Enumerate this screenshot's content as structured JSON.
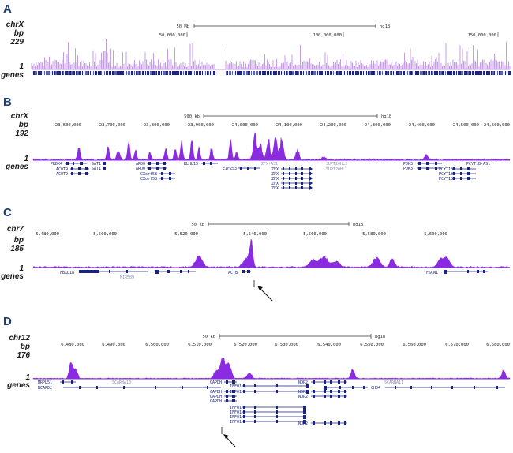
{
  "colors": {
    "signal": "#8a2be2",
    "signal_panel_a": "#c79be8",
    "gene": "#1a237e",
    "label": "#1f3f70",
    "arrow": "#111111"
  },
  "panels": [
    {
      "id": "A",
      "chrom": "chrX",
      "bp": "bp",
      "bp_value": "229",
      "y_one": "1",
      "genes_label": "genes",
      "scale_left": "50 Mb",
      "scale_right": "hg18",
      "ticks": [
        "50,000,000",
        "100,000,000",
        "150,000,000"
      ],
      "genes": []
    },
    {
      "id": "B",
      "chrom": "chrX",
      "bp": "bp",
      "bp_value": "192",
      "y_one": "1",
      "genes_label": "genes",
      "scale_left": "500 kb",
      "scale_right": "hg18",
      "ticks": [
        "23,600,000",
        "23,700,000",
        "23,800,000",
        "23,900,000",
        "24,000,000",
        "24,100,000",
        "24,200,000",
        "24,300,000",
        "24,400,000",
        "24,500,000",
        "24,600,000"
      ],
      "genes": [
        {
          "name": "PRDX4",
          "gray": false
        },
        {
          "name": "ACOT9",
          "gray": false
        },
        {
          "name": "ACOT9",
          "gray": false
        },
        {
          "name": "SAT1",
          "gray": false
        },
        {
          "name": "SAT1",
          "gray": false
        },
        {
          "name": "APOO",
          "gray": false
        },
        {
          "name": "APOO",
          "gray": false
        },
        {
          "name": "CXorf58",
          "gray": false
        },
        {
          "name": "CXorf58",
          "gray": false
        },
        {
          "name": "KLHL15",
          "gray": false
        },
        {
          "name": "EIF2S3",
          "gray": false
        },
        {
          "name": "ZFX-AS1",
          "gray": true
        },
        {
          "name": "ZFX",
          "gray": false
        },
        {
          "name": "ZFX",
          "gray": false
        },
        {
          "name": "ZFX",
          "gray": false
        },
        {
          "name": "ZFX",
          "gray": false
        },
        {
          "name": "ZFX",
          "gray": false
        },
        {
          "name": "SUPT20HL2",
          "gray": true
        },
        {
          "name": "SUPT20HL1",
          "gray": true
        },
        {
          "name": "PDK3",
          "gray": false
        },
        {
          "name": "PDK3",
          "gray": false
        },
        {
          "name": "PCYT1B-AS1",
          "gray": false
        },
        {
          "name": "PCYT1B",
          "gray": false
        },
        {
          "name": "PCYT1B",
          "gray": false
        },
        {
          "name": "PCYT1B",
          "gray": false
        }
      ]
    },
    {
      "id": "C",
      "chrom": "chr7",
      "bp": "bp",
      "bp_value": "185",
      "y_one": "1",
      "genes_label": "genes",
      "scale_left": "50 kb",
      "scale_right": "hg18",
      "ticks": [
        "5,480,000",
        "5,500,000",
        "5,520,000",
        "5,540,000",
        "5,560,000",
        "5,580,000",
        "5,600,000"
      ],
      "genes": [
        {
          "name": "FBXL18",
          "gray": false
        },
        {
          "name": "MIR589",
          "gray": true
        },
        {
          "name": "ACTB",
          "gray": false
        },
        {
          "name": "FSCN1",
          "gray": false
        }
      ]
    },
    {
      "id": "D",
      "chrom": "chr12",
      "bp": "bp",
      "bp_value": "176",
      "y_one": "1",
      "genes_label": "genes",
      "scale_left": "50 kb",
      "scale_right": "hg18",
      "ticks": [
        "6,480,000",
        "6,490,000",
        "6,500,000",
        "6,510,000",
        "6,520,000",
        "6,530,000",
        "6,540,000",
        "6,550,000",
        "6,560,000",
        "6,570,000",
        "6,580,000"
      ],
      "genes": [
        {
          "name": "MRPL51",
          "gray": false
        },
        {
          "name": "NCAPD2",
          "gray": false
        },
        {
          "name": "SCARNA10",
          "gray": true
        },
        {
          "name": "GAPDH",
          "gray": false
        },
        {
          "name": "GAPDH",
          "gray": false
        },
        {
          "name": "GAPDH",
          "gray": false
        },
        {
          "name": "GAPDH",
          "gray": false
        },
        {
          "name": "IFFO1",
          "gray": false
        },
        {
          "name": "IFFO1",
          "gray": false
        },
        {
          "name": "IFFO1",
          "gray": false
        },
        {
          "name": "IFFO1",
          "gray": false
        },
        {
          "name": "IFFO1",
          "gray": false
        },
        {
          "name": "IFFO1",
          "gray": false
        },
        {
          "name": "NOP2",
          "gray": false
        },
        {
          "name": "NOP2",
          "gray": false
        },
        {
          "name": "NOP2",
          "gray": false
        },
        {
          "name": "NOP2",
          "gray": false
        },
        {
          "name": "CHD4",
          "gray": false
        },
        {
          "name": "SCARNA11",
          "gray": true
        }
      ]
    }
  ]
}
